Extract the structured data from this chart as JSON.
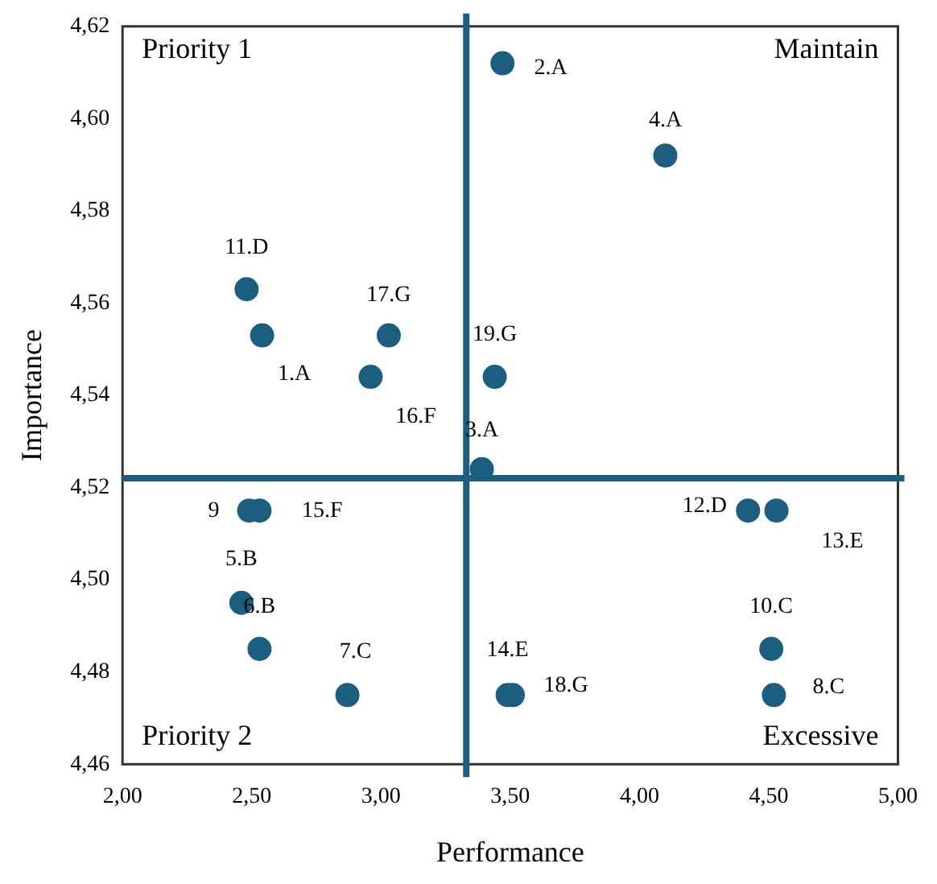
{
  "chart_data": {
    "type": "scatter",
    "xlabel": "Performance",
    "ylabel": "Importance",
    "xlim": [
      2,
      5
    ],
    "ylim": [
      4.46,
      4.62
    ],
    "xticks": [
      {
        "value": 2,
        "label": "2,00"
      },
      {
        "value": 2.5,
        "label": "2,50"
      },
      {
        "value": 3,
        "label": "3,00"
      },
      {
        "value": 3.5,
        "label": "3,50"
      },
      {
        "value": 4,
        "label": "4,00"
      },
      {
        "value": 4.5,
        "label": "4,50"
      },
      {
        "value": 5,
        "label": "5,00"
      }
    ],
    "yticks": [
      {
        "value": 4.46,
        "label": "4,46"
      },
      {
        "value": 4.48,
        "label": "4,48"
      },
      {
        "value": 4.5,
        "label": "4,50"
      },
      {
        "value": 4.52,
        "label": "4,52"
      },
      {
        "value": 4.54,
        "label": "4,54"
      },
      {
        "value": 4.56,
        "label": "4,56"
      },
      {
        "value": 4.58,
        "label": "4,58"
      },
      {
        "value": 4.6,
        "label": "4,60"
      },
      {
        "value": 4.62,
        "label": "4,62"
      }
    ],
    "series": [
      {
        "color": "#1b5e80",
        "x": [
          3.47,
          4.1,
          2.48,
          2.54,
          3.03,
          2.96,
          3.44,
          3.39,
          2.49,
          2.53,
          2.46,
          2.53,
          2.87,
          3.49,
          3.51,
          4.42,
          4.53,
          4.51,
          4.52
        ],
        "values": [
          4.612,
          4.592,
          4.563,
          4.553,
          4.553,
          4.544,
          4.544,
          4.524,
          4.515,
          4.515,
          4.495,
          4.485,
          4.475,
          4.475,
          4.475,
          4.515,
          4.515,
          4.485,
          4.475
        ]
      }
    ],
    "marker": "circle",
    "grid": false,
    "legend": false,
    "ref_lines": [
      {
        "axis": "x",
        "value": 3.33,
        "color": "#1b5e80"
      },
      {
        "axis": "y",
        "value": 4.522,
        "color": "#1b5e80"
      }
    ],
    "annotations": [
      "Priority 1",
      "Maintain",
      "Priority 2",
      "Excessive",
      {
        "text": "2.A",
        "x": 3.47,
        "y": 4.612
      },
      {
        "text": "4.A",
        "x": 4.1,
        "y": 4.592
      },
      {
        "text": "11.D",
        "x": 2.48,
        "y": 4.563
      },
      {
        "text": "1.A",
        "x": 2.54,
        "y": 4.553
      },
      {
        "text": "17.G",
        "x": 3.03,
        "y": 4.553
      },
      {
        "text": "16.F",
        "x": 2.96,
        "y": 4.544
      },
      {
        "text": "19.G",
        "x": 3.44,
        "y": 4.544
      },
      {
        "text": "3.A",
        "x": 3.39,
        "y": 4.524
      },
      {
        "text": "9",
        "x": 2.49,
        "y": 4.515
      },
      {
        "text": "15.F",
        "x": 2.53,
        "y": 4.515
      },
      {
        "text": "5.B",
        "x": 2.46,
        "y": 4.495
      },
      {
        "text": "6.B",
        "x": 2.53,
        "y": 4.485
      },
      {
        "text": "7.C",
        "x": 2.87,
        "y": 4.475
      },
      {
        "text": "14.E",
        "x": 3.49,
        "y": 4.475
      },
      {
        "text": "18.G",
        "x": 3.51,
        "y": 4.475
      },
      {
        "text": "12.D",
        "x": 4.42,
        "y": 4.515
      },
      {
        "text": "13.E",
        "x": 4.53,
        "y": 4.515
      },
      {
        "text": "10.C",
        "x": 4.51,
        "y": 4.485
      },
      {
        "text": "8.C",
        "x": 4.52,
        "y": 4.475
      }
    ]
  }
}
